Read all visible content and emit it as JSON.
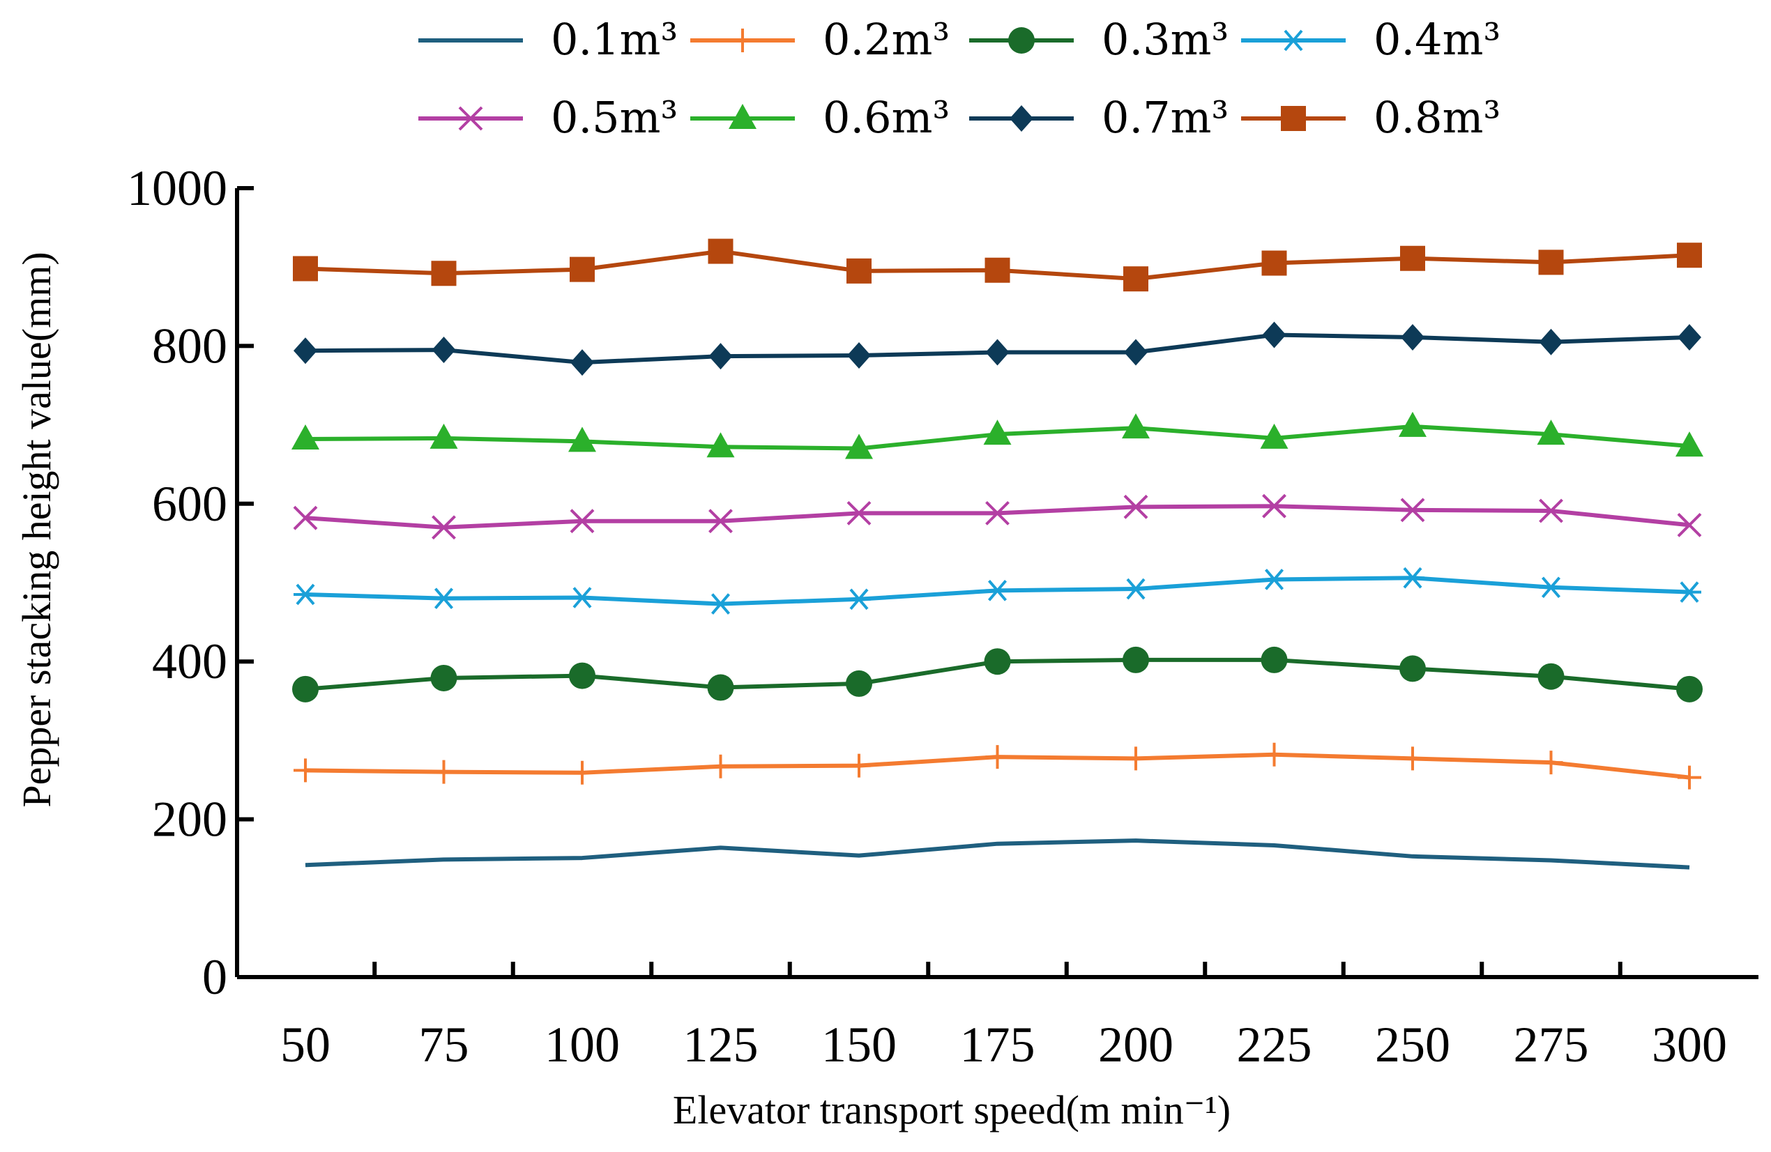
{
  "chart_data": {
    "type": "line",
    "xlabel": "Elevator transport speed(m min⁻¹)",
    "ylabel": "Pepper stacking height value(mm)",
    "x": [
      50,
      75,
      100,
      125,
      150,
      175,
      200,
      225,
      250,
      275,
      300
    ],
    "ylim": [
      0,
      1000
    ],
    "yticks": [
      0,
      200,
      400,
      600,
      800,
      1000
    ],
    "grid": false,
    "legend_position": "top",
    "series": [
      {
        "name": "0.1m³",
        "color": "#1f5f7f",
        "marker": "none",
        "values": [
          142,
          149,
          151,
          164,
          154,
          169,
          173,
          167,
          153,
          148,
          139
        ]
      },
      {
        "name": "0.2m³",
        "color": "#f47b30",
        "marker": "plus",
        "values": [
          262,
          260,
          259,
          267,
          268,
          279,
          277,
          282,
          277,
          272,
          253
        ]
      },
      {
        "name": "0.3m³",
        "color": "#1a6b2a",
        "marker": "circle",
        "values": [
          365,
          379,
          382,
          367,
          372,
          400,
          402,
          402,
          391,
          381,
          365
        ]
      },
      {
        "name": "0.4m³",
        "color": "#1aa0d8",
        "marker": "asterisk",
        "values": [
          485,
          480,
          481,
          473,
          479,
          490,
          492,
          504,
          506,
          494,
          488
        ]
      },
      {
        "name": "0.5m³",
        "color": "#b33fa3",
        "marker": "cross",
        "values": [
          582,
          570,
          578,
          578,
          588,
          588,
          596,
          597,
          592,
          591,
          573
        ]
      },
      {
        "name": "0.6m³",
        "color": "#2bb02b",
        "marker": "triangle",
        "values": [
          682,
          683,
          679,
          672,
          670,
          688,
          696,
          683,
          698,
          688,
          673
        ]
      },
      {
        "name": "0.7m³",
        "color": "#0d3a57",
        "marker": "diamond",
        "values": [
          794,
          795,
          779,
          787,
          788,
          792,
          792,
          814,
          811,
          805,
          811
        ]
      },
      {
        "name": "0.8m³",
        "color": "#b5470e",
        "marker": "square",
        "values": [
          898,
          892,
          897,
          920,
          895,
          896,
          885,
          905,
          911,
          906,
          915
        ]
      }
    ]
  }
}
